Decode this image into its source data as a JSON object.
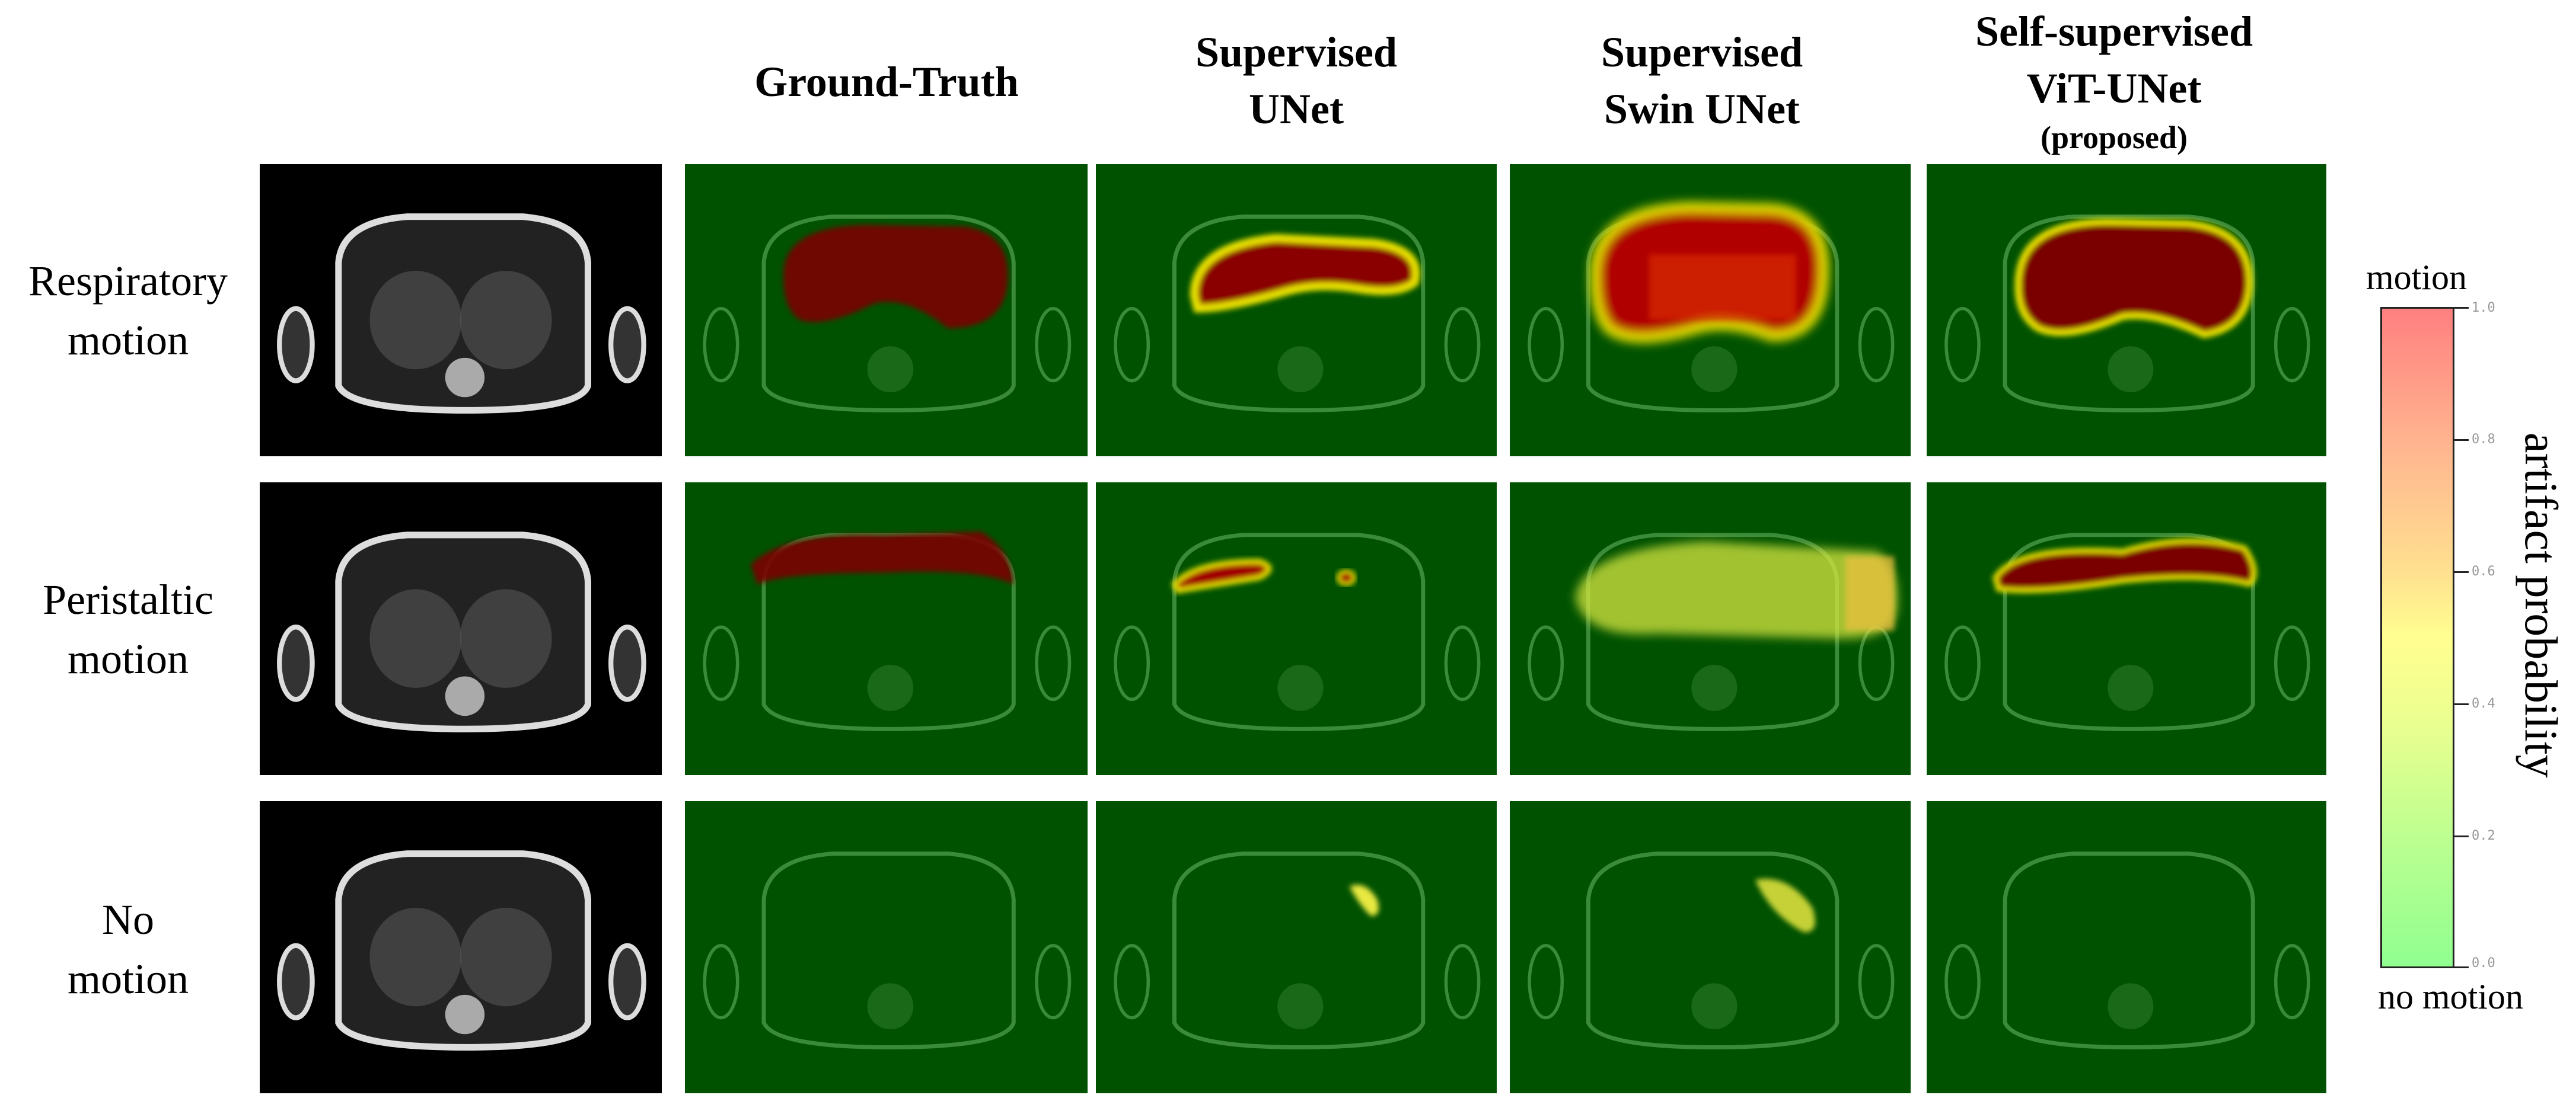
{
  "columns": [
    {
      "line1": "Ground-Truth"
    },
    {
      "line1": "Supervised",
      "line2": "UNet"
    },
    {
      "line1": "Supervised",
      "line2": "Swin UNet"
    },
    {
      "line1": "Self-supervised",
      "line2": "ViT-UNet",
      "line3": "(proposed)"
    }
  ],
  "rows": [
    {
      "line1": "Respiratory",
      "line2": "motion"
    },
    {
      "line1": "Peristaltic",
      "line2": "motion"
    },
    {
      "line1": "No",
      "line2": "motion"
    }
  ],
  "colorbar": {
    "top_label": "motion",
    "bottom_label": "no motion",
    "axis_label": "artifact probability",
    "ticks": [
      "1.0",
      "0.8",
      "0.6",
      "0.4",
      "0.2",
      "0.0"
    ],
    "range": [
      0,
      1
    ],
    "colors": {
      "high": "#ff8080",
      "mid": "#ffff90",
      "low": "#90ff90"
    }
  },
  "colors": {
    "background_map": "#005200",
    "motion_region": "#7a0000"
  }
}
